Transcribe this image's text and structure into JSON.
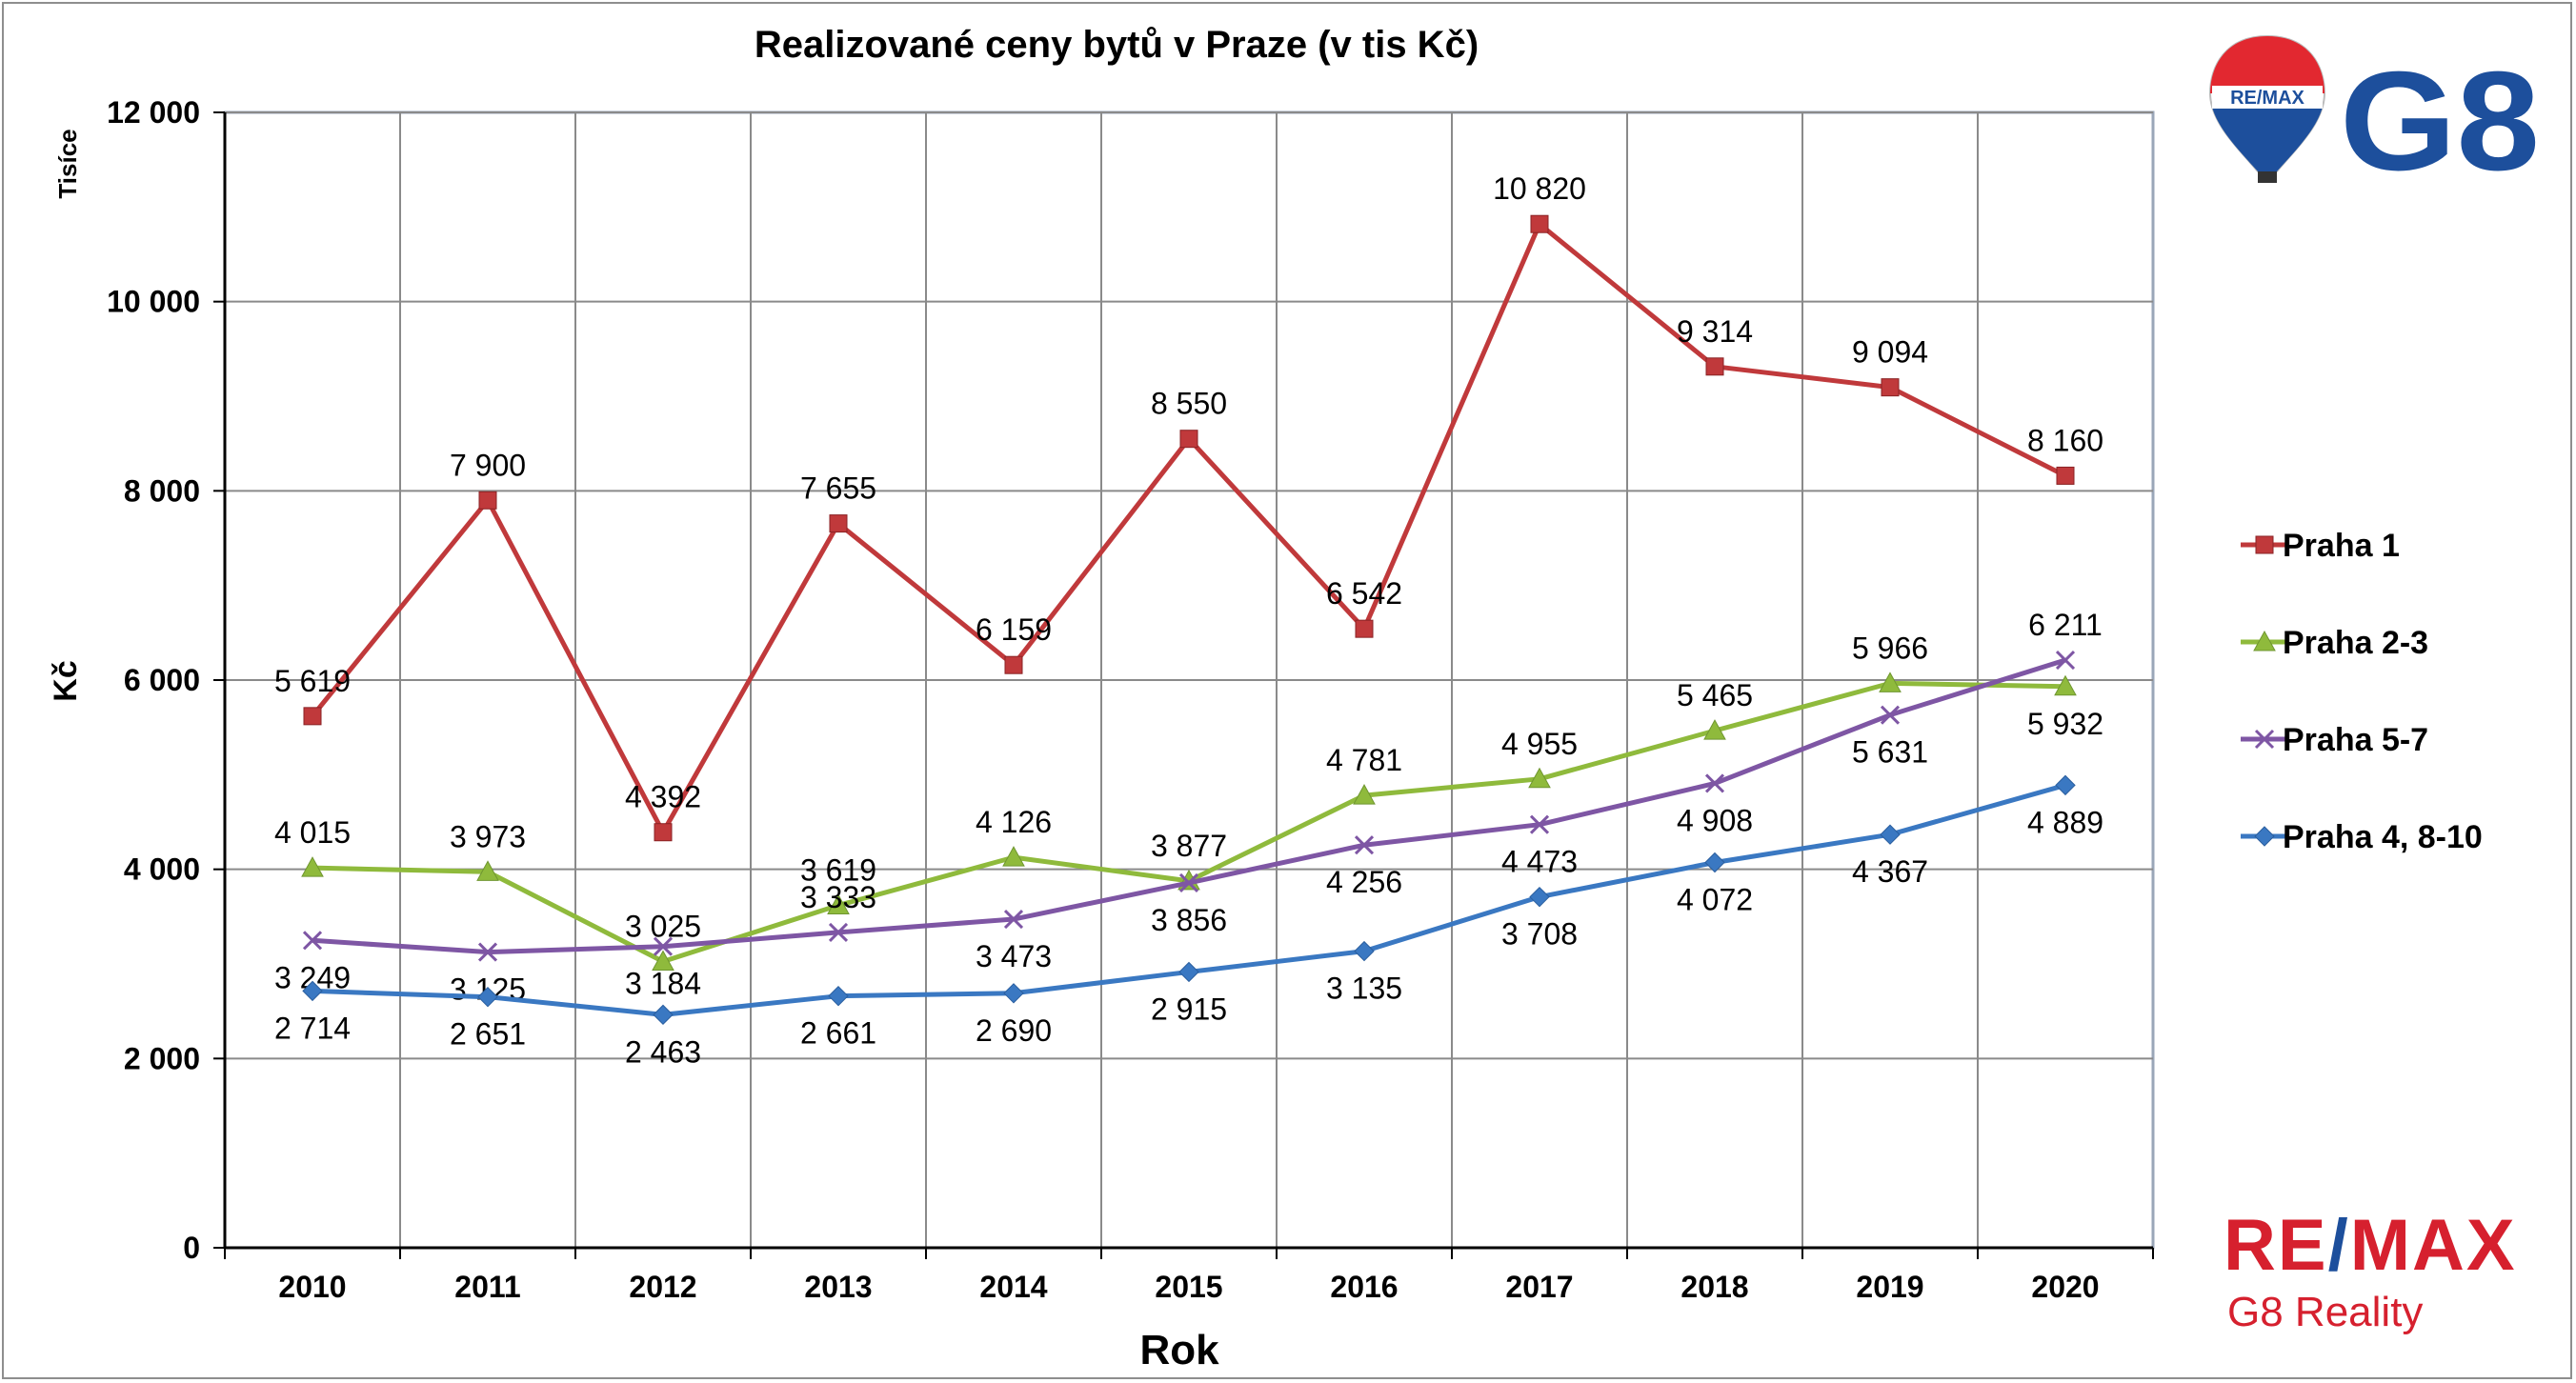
{
  "chart_data": {
    "type": "line",
    "title": "Realizované ceny bytů v Praze (v tis Kč)",
    "xlabel": "Rok",
    "ylabel": "Kč",
    "ylabel_unit": "Tisíce",
    "categories": [
      "2010",
      "2011",
      "2012",
      "2013",
      "2014",
      "2015",
      "2016",
      "2017",
      "2018",
      "2019",
      "2020"
    ],
    "ylim": [
      0,
      12000
    ],
    "yticks": [
      0,
      2000,
      4000,
      6000,
      8000,
      10000,
      12000
    ],
    "ytick_labels": [
      "0",
      "2 000",
      "4 000",
      "6 000",
      "8 000",
      "10 000",
      "12 000"
    ],
    "grid": true,
    "legend_position": "right",
    "series": [
      {
        "name": "Praha 1",
        "color": "#c0393b",
        "marker": "square",
        "values": [
          5619,
          7900,
          4392,
          7655,
          6159,
          8550,
          6542,
          10820,
          9314,
          9094,
          8160
        ],
        "labels": [
          "5 619",
          "7 900",
          "4 392",
          "7 655",
          "6 159",
          "8 550",
          "6 542",
          "10 820",
          "9 314",
          "9 094",
          "8 160"
        ]
      },
      {
        "name": "Praha 2-3",
        "color": "#8fba3c",
        "marker": "triangle",
        "values": [
          4015,
          3973,
          3025,
          3619,
          4126,
          3877,
          4781,
          4955,
          5465,
          5966,
          5932
        ],
        "labels": [
          "4 015",
          "3 973",
          "3 025",
          "3 619",
          "4 126",
          "3 877",
          "4 781",
          "4 955",
          "5 465",
          "5 966",
          "5 932"
        ]
      },
      {
        "name": "Praha 5-7",
        "color": "#7e56a4",
        "marker": "x",
        "values": [
          3249,
          3125,
          3184,
          3333,
          3473,
          3856,
          4256,
          4473,
          4908,
          5631,
          6211
        ],
        "labels": [
          "3 249",
          "3 125",
          "3 184",
          "3 333",
          "3 473",
          "3 856",
          "4 256",
          "4 473",
          "4 908",
          "5 631",
          "6 211"
        ]
      },
      {
        "name": "Praha 4, 8-10",
        "color": "#3a78c2",
        "marker": "diamond",
        "values": [
          2714,
          2651,
          2463,
          2661,
          2690,
          2915,
          3135,
          3708,
          4072,
          4367,
          4889
        ],
        "labels": [
          "2 714",
          "2 651",
          "2 463",
          "2 661",
          "2 690",
          "2 915",
          "3 135",
          "3 708",
          "4 072",
          "4 367",
          "4 889"
        ]
      }
    ]
  },
  "branding": {
    "top_logo_balloon": "RE/MAX",
    "top_logo_mark": "G8",
    "bottom_logo_brand_left": "RE",
    "bottom_logo_brand_slash": "/",
    "bottom_logo_brand_right": "MAX",
    "bottom_logo_sub": "G8 Reality"
  }
}
